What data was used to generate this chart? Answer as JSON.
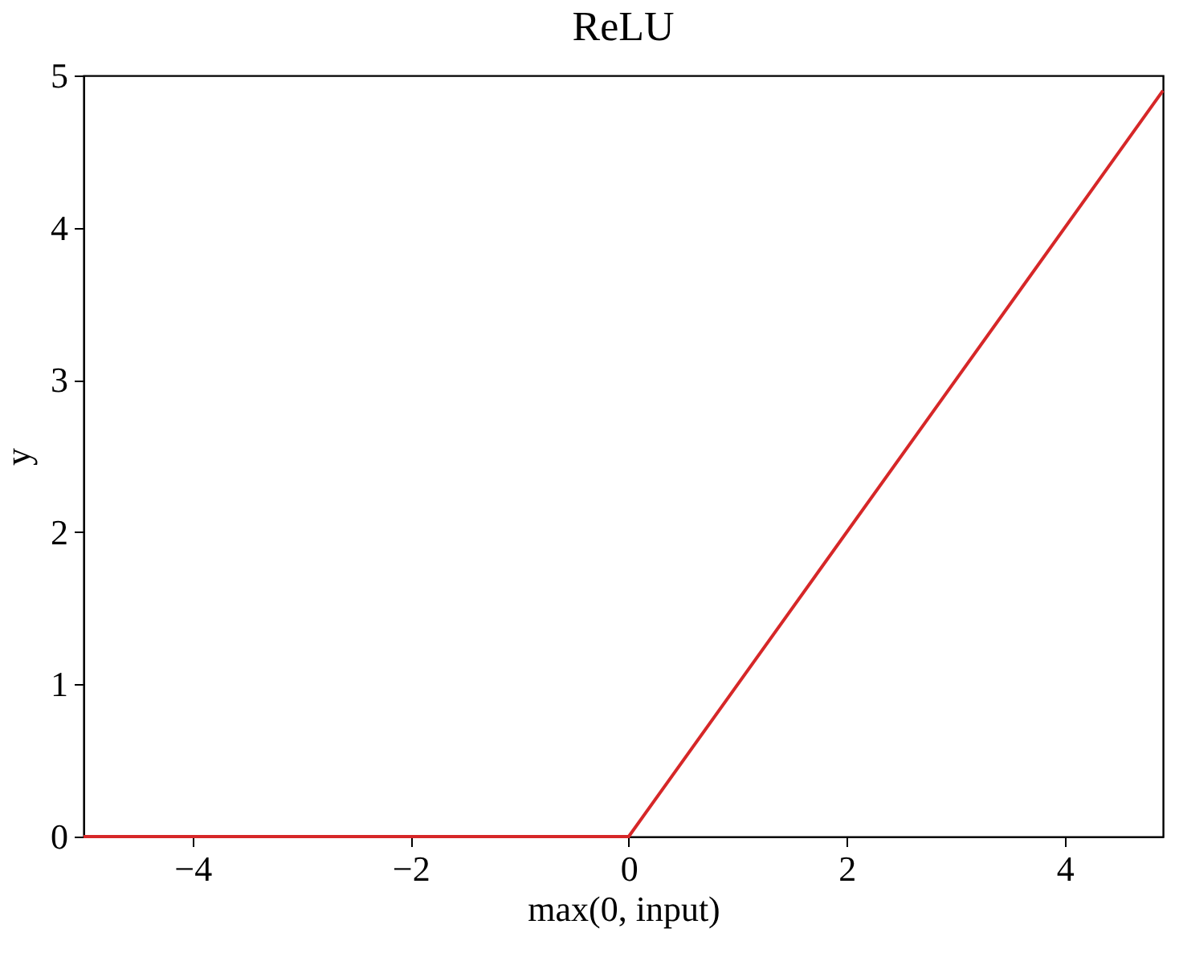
{
  "chart_data": {
    "type": "line",
    "title": "ReLU",
    "xlabel": "max(0, input)",
    "ylabel": "y",
    "x": [
      -5,
      0,
      4.9
    ],
    "series": [
      {
        "color": "#d62728",
        "values": [
          0,
          0,
          4.9
        ]
      }
    ],
    "xlim": [
      -5,
      4.9
    ],
    "ylim": [
      0,
      5
    ],
    "xticks": [
      -4,
      -2,
      0,
      2,
      4
    ],
    "yticks": [
      0,
      1,
      2,
      3,
      4,
      5
    ],
    "grid": false,
    "legend": false,
    "marker": "none",
    "line_style": "solid"
  }
}
